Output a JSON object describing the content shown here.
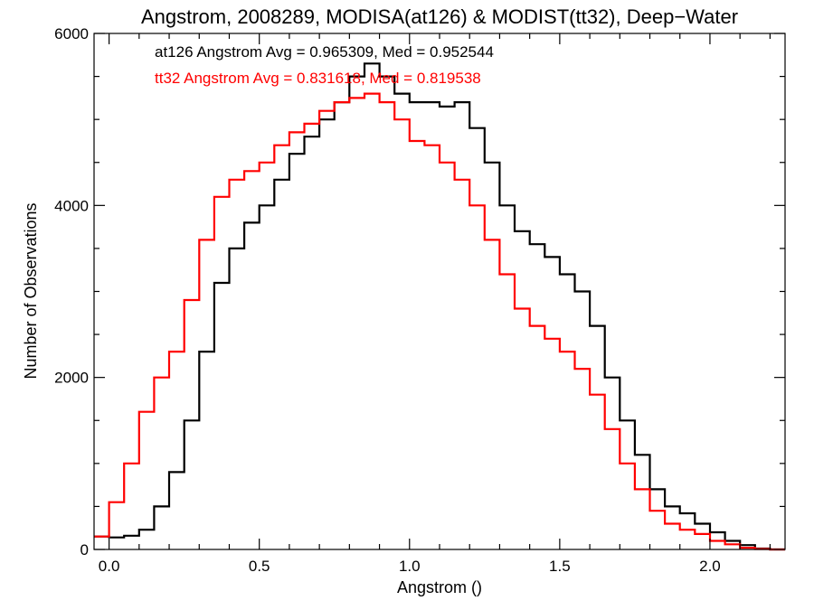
{
  "chart_data": {
    "type": "line",
    "title": "Angstrom, 2008289, MODISA(at126) & MODIST(tt32), Deep−Water",
    "xlabel": "Angstrom ()",
    "ylabel": "Number of Observations",
    "xlim": [
      -0.05,
      2.25
    ],
    "ylim": [
      0,
      6000
    ],
    "x_ticks": [
      0.0,
      0.5,
      1.0,
      1.5,
      2.0
    ],
    "x_tick_labels": [
      "0.0",
      "0.5",
      "1.0",
      "1.5",
      "2.0"
    ],
    "y_ticks": [
      0,
      2000,
      4000,
      6000
    ],
    "y_tick_labels": [
      "0",
      "2000",
      "4000",
      "6000"
    ],
    "grid": false,
    "legend": "none",
    "annotations": [
      {
        "text": "at126 Angstrom Avg = 0.965309, Med = 0.952544",
        "color": "#000000"
      },
      {
        "text": "tt32 Angstrom Avg = 0.831618, Med = 0.819538",
        "color": "#ff0000"
      }
    ],
    "series": [
      {
        "color": "#000000",
        "style": "step",
        "x": [
          -0.05,
          0.0,
          0.05,
          0.1,
          0.15,
          0.2,
          0.25,
          0.3,
          0.35,
          0.4,
          0.45,
          0.5,
          0.55,
          0.6,
          0.65,
          0.7,
          0.75,
          0.8,
          0.85,
          0.9,
          0.95,
          1.0,
          1.05,
          1.1,
          1.15,
          1.2,
          1.25,
          1.3,
          1.35,
          1.4,
          1.45,
          1.5,
          1.55,
          1.6,
          1.65,
          1.7,
          1.75,
          1.8,
          1.85,
          1.9,
          1.95,
          2.0,
          2.05,
          2.1,
          2.15,
          2.2,
          2.25
        ],
        "y": [
          150,
          140,
          160,
          230,
          500,
          900,
          1500,
          2300,
          3100,
          3500,
          3800,
          4000,
          4300,
          4600,
          4800,
          5000,
          5200,
          5500,
          5650,
          5500,
          5300,
          5200,
          5200,
          5150,
          5200,
          4900,
          4500,
          4000,
          3700,
          3550,
          3400,
          3200,
          3000,
          2600,
          2000,
          1500,
          1100,
          700,
          500,
          420,
          300,
          200,
          100,
          50,
          10,
          0,
          0
        ]
      },
      {
        "color": "#ff0000",
        "style": "step",
        "x": [
          -0.05,
          0.0,
          0.05,
          0.1,
          0.15,
          0.2,
          0.25,
          0.3,
          0.35,
          0.4,
          0.45,
          0.5,
          0.55,
          0.6,
          0.65,
          0.7,
          0.75,
          0.8,
          0.85,
          0.9,
          0.95,
          1.0,
          1.05,
          1.1,
          1.15,
          1.2,
          1.25,
          1.3,
          1.35,
          1.4,
          1.45,
          1.5,
          1.55,
          1.6,
          1.65,
          1.7,
          1.75,
          1.8,
          1.85,
          1.9,
          1.95,
          2.0,
          2.05,
          2.1,
          2.15,
          2.2,
          2.25
        ],
        "y": [
          150,
          550,
          1000,
          1600,
          2000,
          2300,
          2900,
          3600,
          4100,
          4300,
          4400,
          4500,
          4700,
          4850,
          4950,
          5100,
          5200,
          5250,
          5300,
          5200,
          5000,
          4750,
          4700,
          4500,
          4300,
          4000,
          3600,
          3200,
          2800,
          2600,
          2450,
          2300,
          2100,
          1800,
          1400,
          1000,
          700,
          450,
          300,
          230,
          180,
          100,
          60,
          20,
          5,
          0,
          0
        ]
      }
    ]
  }
}
